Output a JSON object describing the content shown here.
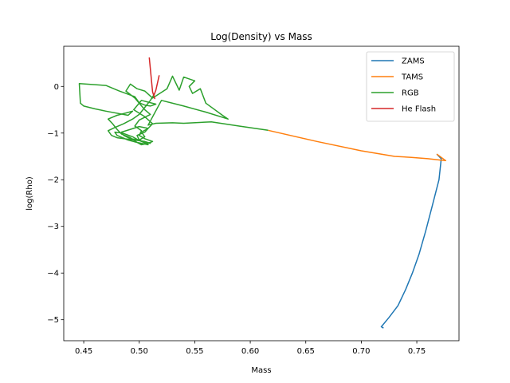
{
  "chart_data": {
    "type": "line",
    "title": "Log(Density) vs Mass",
    "xlabel": "Mass",
    "ylabel": "log(Rho)",
    "xlim": [
      0.432,
      0.788
    ],
    "ylim": [
      -5.45,
      0.86
    ],
    "xticks": [
      0.45,
      0.5,
      0.55,
      0.6,
      0.65,
      0.7,
      0.75
    ],
    "xtick_labels": [
      "0.45",
      "0.50",
      "0.55",
      "0.60",
      "0.65",
      "0.70",
      "0.75"
    ],
    "yticks": [
      -5,
      -4,
      -3,
      -2,
      -1,
      0
    ],
    "ytick_labels": [
      "−5",
      "−4",
      "−3",
      "−2",
      "−1",
      "0"
    ],
    "grid": false,
    "legend_position": "top-right",
    "series": [
      {
        "name": "ZAMS",
        "color": "#1f77b4",
        "x": [
          0.72,
          0.718,
          0.725,
          0.733,
          0.74,
          0.746,
          0.752,
          0.758,
          0.764,
          0.77,
          0.772,
          0.768
        ],
        "y": [
          -5.18,
          -5.15,
          -4.95,
          -4.7,
          -4.35,
          -4.0,
          -3.6,
          -3.1,
          -2.55,
          -2.0,
          -1.55,
          -1.45
        ]
      },
      {
        "name": "TAMS",
        "color": "#ff7f0e",
        "x": [
          0.768,
          0.776,
          0.772,
          0.76,
          0.745,
          0.73,
          0.7,
          0.66,
          0.616
        ],
        "y": [
          -1.45,
          -1.59,
          -1.58,
          -1.55,
          -1.52,
          -1.5,
          -1.38,
          -1.18,
          -0.94
        ]
      },
      {
        "name": "RGB",
        "color": "#2ca02c",
        "x": [
          0.616,
          0.59,
          0.565,
          0.54,
          0.53,
          0.515,
          0.508,
          0.52,
          0.54,
          0.56,
          0.58,
          0.575,
          0.56,
          0.555,
          0.548,
          0.545,
          0.55,
          0.54,
          0.536,
          0.53,
          0.525,
          0.512,
          0.505,
          0.498,
          0.492,
          0.488,
          0.496,
          0.505,
          0.51,
          0.5,
          0.496,
          0.502,
          0.5,
          0.505,
          0.512,
          0.508,
          0.502,
          0.498,
          0.49,
          0.48,
          0.478,
          0.485,
          0.494,
          0.5,
          0.506,
          0.508,
          0.498,
          0.492,
          0.484,
          0.48,
          0.476,
          0.472,
          0.48,
          0.488,
          0.494,
          0.49,
          0.47,
          0.46,
          0.45,
          0.447,
          0.446,
          0.47,
          0.482,
          0.496,
          0.5,
          0.505,
          0.51,
          0.515,
          0.502,
          0.495,
          0.505,
          0.512,
          0.508,
          0.502,
          0.505,
          0.5,
          0.492,
          0.486,
          0.484,
          0.492,
          0.5,
          0.508,
          0.505,
          0.498,
          0.5,
          0.505,
          0.51,
          0.505,
          0.48,
          0.475,
          0.472,
          0.478,
          0.486,
          0.494,
          0.5,
          0.505,
          0.51,
          0.514
        ],
        "y": [
          -0.94,
          -0.85,
          -0.76,
          -0.79,
          -0.78,
          -0.79,
          -0.83,
          -0.3,
          -0.42,
          -0.55,
          -0.7,
          -0.62,
          -0.36,
          -0.05,
          -0.15,
          0.0,
          0.12,
          0.2,
          -0.08,
          0.22,
          -0.05,
          -0.25,
          -0.1,
          -0.05,
          0.05,
          -0.1,
          -0.25,
          -0.5,
          -0.6,
          -0.72,
          -0.85,
          -0.95,
          -1.05,
          -1.12,
          -1.18,
          -1.22,
          -1.25,
          -1.2,
          -1.15,
          -1.05,
          -0.98,
          -1.0,
          -1.08,
          -1.16,
          -1.22,
          -1.25,
          -1.2,
          -1.1,
          -1.02,
          -0.92,
          -0.8,
          -0.7,
          -0.62,
          -0.57,
          -0.53,
          -0.62,
          -0.53,
          -0.48,
          -0.42,
          -0.36,
          0.06,
          0.02,
          -0.1,
          -0.22,
          -0.35,
          -0.4,
          -0.42,
          -0.38,
          -0.3,
          -0.5,
          -0.65,
          -0.8,
          -0.9,
          -0.98,
          -1.08,
          -1.15,
          -1.12,
          -1.05,
          -0.98,
          -0.92,
          -0.86,
          -0.9,
          -0.98,
          -1.05,
          -1.15,
          -1.2,
          -1.22,
          -1.18,
          -1.1,
          -1.05,
          -0.95,
          -0.88,
          -0.8,
          -0.7,
          -0.6,
          -0.45,
          -0.3,
          -0.15
        ]
      },
      {
        "name": "He Flash",
        "color": "#d62728",
        "x": [
          0.509,
          0.512,
          0.514,
          0.513,
          0.515,
          0.518
        ],
        "y": [
          0.62,
          -0.12,
          -0.26,
          -0.2,
          -0.08,
          0.24
        ]
      }
    ]
  }
}
